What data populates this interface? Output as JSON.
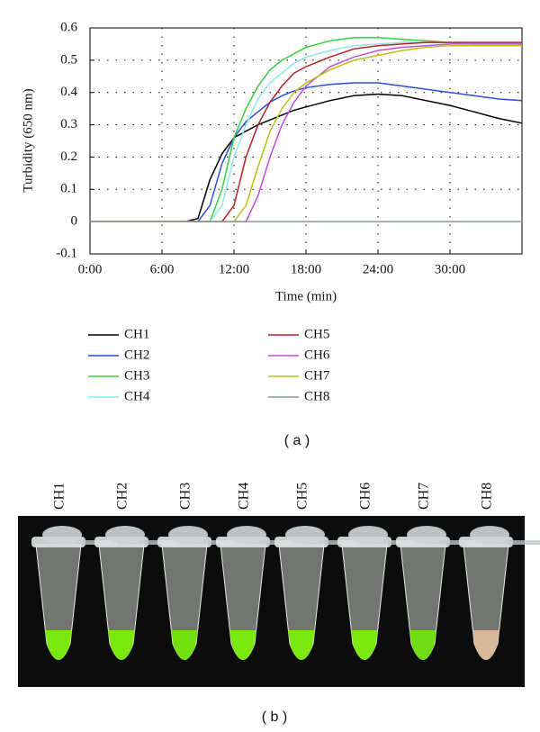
{
  "chart_data": {
    "type": "line",
    "xlabel": "Time (min)",
    "ylabel": "Turbidity (650 nm)",
    "x": [
      0,
      2,
      4,
      6,
      8,
      9,
      10,
      11,
      12,
      13,
      14,
      15,
      16,
      17,
      18,
      20,
      22,
      24,
      26,
      28,
      30,
      32,
      34,
      36
    ],
    "xlim": [
      0,
      36
    ],
    "xticks": [
      {
        "value": 0,
        "label": "0:00"
      },
      {
        "value": 6,
        "label": "6:00"
      },
      {
        "value": 12,
        "label": "12:00"
      },
      {
        "value": 18,
        "label": "18:00"
      },
      {
        "value": 24,
        "label": "24:00"
      },
      {
        "value": 30,
        "label": "30:00"
      }
    ],
    "ylim": [
      -0.1,
      0.6
    ],
    "yticks": [
      -0.1,
      0,
      0.1,
      0.2,
      0.3,
      0.4,
      0.5,
      0.6
    ],
    "grid": true,
    "series": [
      {
        "name": "CH1",
        "color": "#000000",
        "values": [
          0,
          0,
          0,
          0,
          0,
          0.01,
          0.13,
          0.21,
          0.26,
          0.28,
          0.3,
          0.315,
          0.33,
          0.345,
          0.355,
          0.375,
          0.39,
          0.395,
          0.39,
          0.375,
          0.36,
          0.34,
          0.32,
          0.305
        ]
      },
      {
        "name": "CH2",
        "color": "#2a4fd6",
        "values": [
          0,
          0,
          0,
          0,
          0,
          0,
          0.05,
          0.18,
          0.26,
          0.31,
          0.34,
          0.37,
          0.39,
          0.405,
          0.415,
          0.425,
          0.43,
          0.43,
          0.42,
          0.41,
          0.4,
          0.39,
          0.38,
          0.375
        ]
      },
      {
        "name": "CH3",
        "color": "#3ccf3c",
        "values": [
          0,
          0,
          0,
          0,
          0,
          0,
          0,
          0.1,
          0.26,
          0.35,
          0.42,
          0.47,
          0.5,
          0.52,
          0.54,
          0.56,
          0.57,
          0.57,
          0.565,
          0.56,
          0.555,
          0.55,
          0.55,
          0.55
        ]
      },
      {
        "name": "CH4",
        "color": "#8fe8e8",
        "values": [
          0,
          0,
          0,
          0,
          0,
          0,
          0,
          0.05,
          0.2,
          0.3,
          0.38,
          0.43,
          0.46,
          0.49,
          0.51,
          0.53,
          0.545,
          0.55,
          0.555,
          0.555,
          0.555,
          0.55,
          0.55,
          0.55
        ]
      },
      {
        "name": "CH5",
        "color": "#b22222",
        "values": [
          0,
          0,
          0,
          0,
          0,
          0,
          0,
          0,
          0.05,
          0.2,
          0.3,
          0.37,
          0.42,
          0.46,
          0.48,
          0.51,
          0.535,
          0.545,
          0.55,
          0.555,
          0.555,
          0.555,
          0.555,
          0.555
        ]
      },
      {
        "name": "CH6",
        "color": "#c34fd6",
        "values": [
          0,
          0,
          0,
          0,
          0,
          0,
          0,
          0,
          0,
          0,
          0.08,
          0.2,
          0.3,
          0.37,
          0.42,
          0.48,
          0.51,
          0.53,
          0.54,
          0.545,
          0.55,
          0.55,
          0.55,
          0.55
        ]
      },
      {
        "name": "CH7",
        "color": "#b8c21a",
        "values": [
          0,
          0,
          0,
          0,
          0,
          0,
          0,
          0,
          0,
          0.05,
          0.17,
          0.28,
          0.35,
          0.4,
          0.43,
          0.47,
          0.5,
          0.515,
          0.53,
          0.54,
          0.545,
          0.545,
          0.545,
          0.545
        ]
      },
      {
        "name": "CH8",
        "color": "#8a9a9a",
        "values": [
          0,
          0,
          0,
          0,
          0,
          0,
          0,
          0,
          0,
          0,
          0,
          0,
          0,
          0,
          0,
          0,
          0,
          0,
          0,
          0,
          0,
          0,
          0,
          0
        ]
      }
    ]
  },
  "caption_a": "( a )",
  "photo_labels": [
    "CH1",
    "CH2",
    "CH3",
    "CH4",
    "CH5",
    "CH6",
    "CH7",
    "CH8"
  ],
  "caption_b": "( b )"
}
